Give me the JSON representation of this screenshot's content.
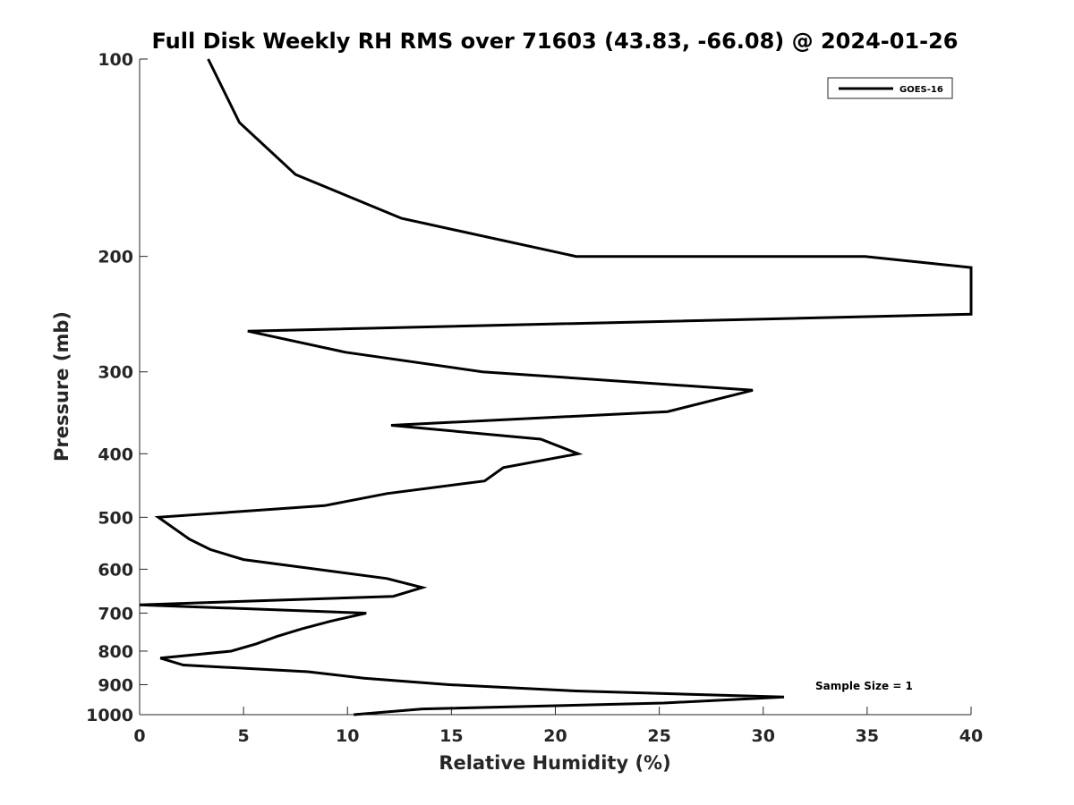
{
  "chart_data": {
    "type": "line",
    "title": "Full Disk Weekly RH RMS over 71603 (43.83, -66.08) @ 2024-01-26",
    "xlabel": "Relative Humidity (%)",
    "ylabel": "Pressure (mb)",
    "xlim": [
      0,
      40
    ],
    "ylim": [
      100,
      1000
    ],
    "y_scale": "log",
    "y_direction": "reversed",
    "x_ticks": [
      0,
      5,
      10,
      15,
      20,
      25,
      30,
      35,
      40
    ],
    "y_ticks": [
      100,
      200,
      300,
      400,
      500,
      600,
      700,
      800,
      900,
      1000
    ],
    "grid": false,
    "legend_position": "top-right",
    "annotation": "Sample Size = 1",
    "series": [
      {
        "name": "GOES-16",
        "color": "#000000",
        "points": [
          [
            3.3,
            100
          ],
          [
            4.8,
            125
          ],
          [
            7.5,
            150
          ],
          [
            12.6,
            175
          ],
          [
            21.0,
            200
          ],
          [
            34.9,
            200
          ],
          [
            40.0,
            208
          ],
          [
            40.0,
            245
          ],
          [
            5.2,
            260
          ],
          [
            9.9,
            280
          ],
          [
            16.5,
            300
          ],
          [
            29.5,
            320
          ],
          [
            25.4,
            345
          ],
          [
            12.1,
            362
          ],
          [
            19.3,
            380
          ],
          [
            21.1,
            400
          ],
          [
            17.5,
            420
          ],
          [
            16.6,
            440
          ],
          [
            11.9,
            460
          ],
          [
            8.9,
            480
          ],
          [
            0.9,
            500
          ],
          [
            2.4,
            540
          ],
          [
            3.4,
            560
          ],
          [
            5.0,
            580
          ],
          [
            11.9,
            620
          ],
          [
            13.6,
            640
          ],
          [
            12.2,
            660
          ],
          [
            0.0,
            680
          ],
          [
            10.9,
            700
          ],
          [
            9.2,
            720
          ],
          [
            7.8,
            740
          ],
          [
            6.6,
            760
          ],
          [
            5.6,
            780
          ],
          [
            4.4,
            800
          ],
          [
            1.0,
            820
          ],
          [
            2.1,
            840
          ],
          [
            8.1,
            860
          ],
          [
            10.8,
            880
          ],
          [
            14.9,
            900
          ],
          [
            21.0,
            920
          ],
          [
            31.0,
            940
          ],
          [
            25.2,
            960
          ],
          [
            13.6,
            980
          ],
          [
            10.3,
            1000
          ]
        ]
      }
    ]
  }
}
